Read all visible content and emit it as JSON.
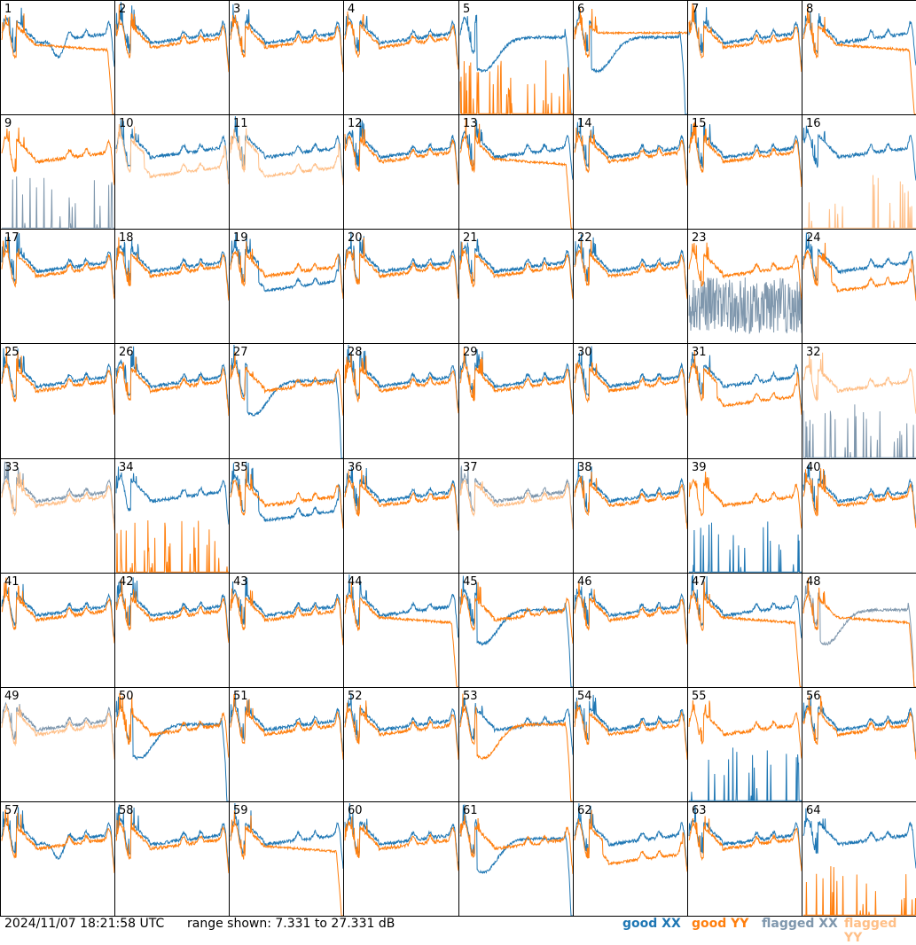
{
  "footer": {
    "timestamp": "2024/11/07 18:21:58 UTC",
    "range": "range shown: 7.331 to 27.331 dB"
  },
  "legend": [
    {
      "label": "good XX",
      "color": "#1f77b4"
    },
    {
      "label": "good YY",
      "color": "#ff7f0e"
    },
    {
      "label": "flagged XX",
      "color": "#7f97ad"
    },
    {
      "label": "flagged YY",
      "color": "#ffbf87"
    }
  ],
  "colors": {
    "good_xx": "#1f77b4",
    "good_yy": "#ff7f0e",
    "flagged_xx": "#7f97ad",
    "flagged_yy": "#ffbf87"
  },
  "chart_data": {
    "type": "line",
    "ylim": [
      7.331,
      27.331
    ],
    "yunit": "dB",
    "grid": false,
    "legend_position": "bottom-right",
    "panels": [
      {
        "id": "1",
        "xx": "good",
        "yy": "good",
        "xx_shape": "dip",
        "yy_shape": "droop"
      },
      {
        "id": "2",
        "xx": "good",
        "yy": "good"
      },
      {
        "id": "3",
        "xx": "good",
        "yy": "good"
      },
      {
        "id": "4",
        "xx": "good",
        "yy": "good"
      },
      {
        "id": "5",
        "xx": "good",
        "yy": "good",
        "xx_shape": "valley",
        "yy_shape": "dead"
      },
      {
        "id": "6",
        "xx": "good",
        "yy": "good",
        "xx_shape": "valley",
        "yy_shape": "flatline"
      },
      {
        "id": "7",
        "xx": "good",
        "yy": "good"
      },
      {
        "id": "8",
        "xx": "good",
        "yy": "good",
        "yy_shape": "droop"
      },
      {
        "id": "9",
        "xx": "flagged",
        "yy": "good",
        "xx_shape": "dead"
      },
      {
        "id": "10",
        "xx": "good",
        "yy": "flagged",
        "yy_shape": "low"
      },
      {
        "id": "11",
        "xx": "good",
        "yy": "flagged",
        "yy_shape": "low"
      },
      {
        "id": "12",
        "xx": "good",
        "yy": "good"
      },
      {
        "id": "13",
        "xx": "good",
        "yy": "good",
        "yy_shape": "droop"
      },
      {
        "id": "14",
        "xx": "good",
        "yy": "good"
      },
      {
        "id": "15",
        "xx": "good",
        "yy": "good"
      },
      {
        "id": "16",
        "xx": "good",
        "yy": "flagged",
        "yy_shape": "dead"
      },
      {
        "id": "17",
        "xx": "good",
        "yy": "good"
      },
      {
        "id": "18",
        "xx": "good",
        "yy": "good"
      },
      {
        "id": "19",
        "xx": "good",
        "yy": "good",
        "xx_shape": "low"
      },
      {
        "id": "20",
        "xx": "good",
        "yy": "good"
      },
      {
        "id": "21",
        "xx": "good",
        "yy": "good"
      },
      {
        "id": "22",
        "xx": "good",
        "yy": "good"
      },
      {
        "id": "23",
        "xx": "flagged",
        "yy": "good",
        "xx_shape": "noisy"
      },
      {
        "id": "24",
        "xx": "good",
        "yy": "good",
        "yy_shape": "low"
      },
      {
        "id": "25",
        "xx": "good",
        "yy": "good"
      },
      {
        "id": "26",
        "xx": "good",
        "yy": "good"
      },
      {
        "id": "27",
        "xx": "good",
        "yy": "good",
        "xx_shape": "valley"
      },
      {
        "id": "28",
        "xx": "good",
        "yy": "good"
      },
      {
        "id": "29",
        "xx": "good",
        "yy": "good"
      },
      {
        "id": "30",
        "xx": "good",
        "yy": "good"
      },
      {
        "id": "31",
        "xx": "good",
        "yy": "good",
        "yy_shape": "low"
      },
      {
        "id": "32",
        "xx": "flagged",
        "yy": "flagged",
        "xx_shape": "dead"
      },
      {
        "id": "33",
        "xx": "flagged",
        "yy": "flagged"
      },
      {
        "id": "34",
        "xx": "good",
        "yy": "good",
        "yy_shape": "dead"
      },
      {
        "id": "35",
        "xx": "good",
        "yy": "good",
        "xx_shape": "low"
      },
      {
        "id": "36",
        "xx": "good",
        "yy": "good"
      },
      {
        "id": "37",
        "xx": "flagged",
        "yy": "flagged"
      },
      {
        "id": "38",
        "xx": "good",
        "yy": "good"
      },
      {
        "id": "39",
        "xx": "good",
        "yy": "good",
        "xx_shape": "dead"
      },
      {
        "id": "40",
        "xx": "good",
        "yy": "good"
      },
      {
        "id": "41",
        "xx": "good",
        "yy": "good"
      },
      {
        "id": "42",
        "xx": "good",
        "yy": "good"
      },
      {
        "id": "43",
        "xx": "good",
        "yy": "good"
      },
      {
        "id": "44",
        "xx": "good",
        "yy": "good",
        "yy_shape": "droop"
      },
      {
        "id": "45",
        "xx": "good",
        "yy": "good",
        "xx_shape": "valley"
      },
      {
        "id": "46",
        "xx": "good",
        "yy": "good"
      },
      {
        "id": "47",
        "xx": "good",
        "yy": "good",
        "yy_shape": "droop"
      },
      {
        "id": "48",
        "xx": "flagged",
        "yy": "good",
        "xx_shape": "valley",
        "yy_shape": "droop"
      },
      {
        "id": "49",
        "xx": "flagged",
        "yy": "flagged"
      },
      {
        "id": "50",
        "xx": "good",
        "yy": "good",
        "xx_shape": "valley"
      },
      {
        "id": "51",
        "xx": "good",
        "yy": "good"
      },
      {
        "id": "52",
        "xx": "good",
        "yy": "good"
      },
      {
        "id": "53",
        "xx": "good",
        "yy": "good",
        "yy_shape": "valley"
      },
      {
        "id": "54",
        "xx": "good",
        "yy": "good"
      },
      {
        "id": "55",
        "xx": "good",
        "yy": "good",
        "xx_shape": "dead"
      },
      {
        "id": "56",
        "xx": "good",
        "yy": "good"
      },
      {
        "id": "57",
        "xx": "good",
        "yy": "good",
        "xx_shape": "dip"
      },
      {
        "id": "58",
        "xx": "good",
        "yy": "good"
      },
      {
        "id": "59",
        "xx": "good",
        "yy": "good",
        "yy_shape": "droop"
      },
      {
        "id": "60",
        "xx": "good",
        "yy": "good"
      },
      {
        "id": "61",
        "xx": "good",
        "yy": "good",
        "xx_shape": "valley"
      },
      {
        "id": "62",
        "xx": "good",
        "yy": "good",
        "yy_shape": "low"
      },
      {
        "id": "63",
        "xx": "good",
        "yy": "good"
      },
      {
        "id": "64",
        "xx": "good",
        "yy": "good",
        "yy_shape": "dead"
      }
    ]
  }
}
